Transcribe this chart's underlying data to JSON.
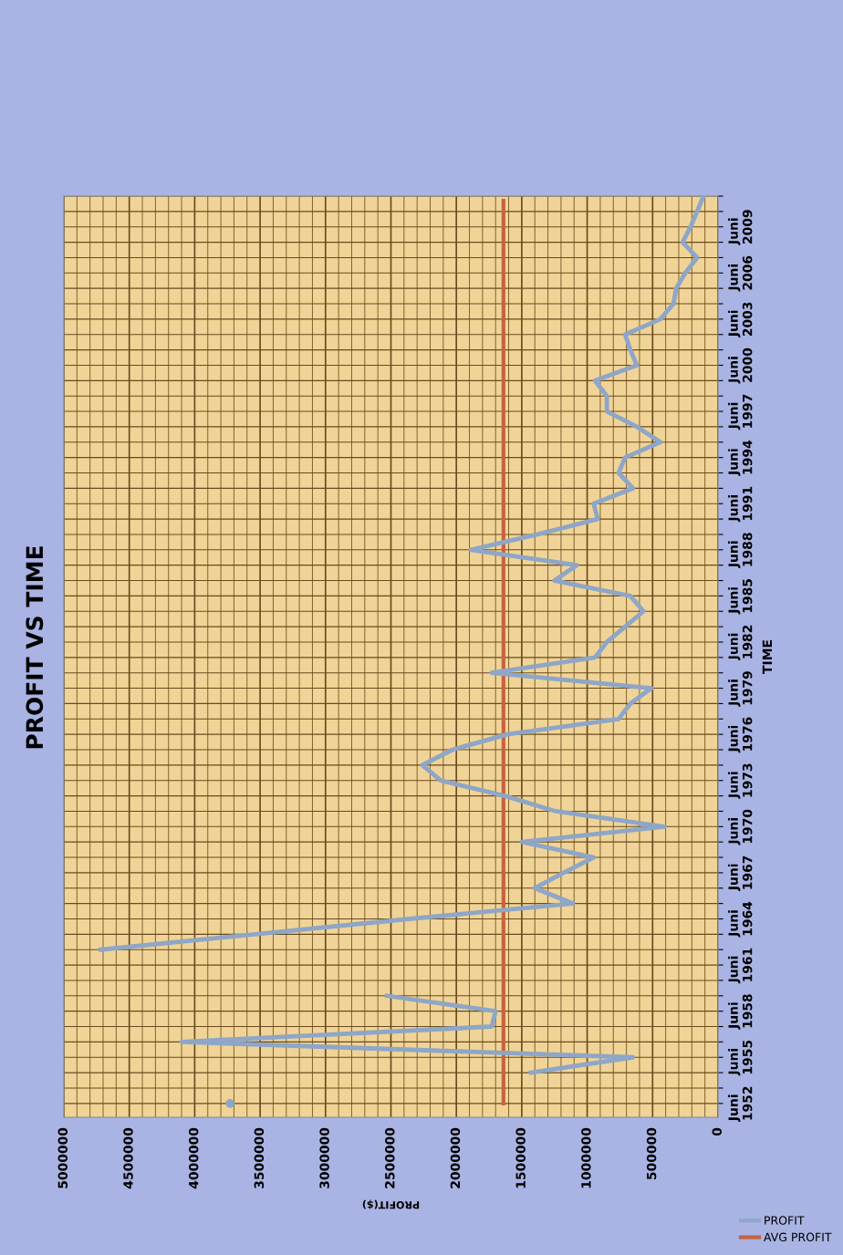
{
  "chart_data": {
    "type": "line",
    "orientation": "horizontal",
    "title": "PROFIT VS TIME",
    "ylabel": "TIME",
    "xlabel": "PROFIT($)",
    "categories": [
      null,
      null,
      "Juni 2009",
      null,
      null,
      "Juni 2006",
      null,
      null,
      "Juni 2003",
      null,
      null,
      "Juni 2000",
      null,
      null,
      "Juni 1997",
      null,
      null,
      "Juni 1994",
      null,
      null,
      "Juni 1991",
      null,
      null,
      "Juni 1988",
      null,
      null,
      "Juni 1985",
      null,
      null,
      "Juni 1982",
      null,
      null,
      "Juni 1979",
      null,
      null,
      "Juni 1976",
      null,
      null,
      "Juni 1973",
      null,
      null,
      "Juni 1970",
      null,
      null,
      "Juni 1967",
      null,
      null,
      "Juni 1964",
      null,
      null,
      "Juni 1961",
      null,
      null,
      "Juni 1958",
      null,
      null,
      "Juni 1955",
      null,
      null,
      "Juni 1952"
    ],
    "series": [
      {
        "name": "PROFIT",
        "color": "#8ea6c8",
        "values": [
          110000,
          160000,
          210000,
          270000,
          160000,
          250000,
          320000,
          340000,
          440000,
          710000,
          670000,
          620000,
          940000,
          850000,
          850000,
          620000,
          440000,
          710000,
          760000,
          650000,
          950000,
          920000,
          1380000,
          1890000,
          1080000,
          1250000,
          670000,
          570000,
          710000,
          850000,
          940000,
          1730000,
          510000,
          670000,
          760000,
          1610000,
          2030000,
          2260000,
          2120000,
          1630000,
          1240000,
          410000,
          1500000,
          950000,
          1180000,
          1400000,
          1110000,
          2360000,
          3540000,
          4720000,
          null,
          null,
          2530000,
          1700000,
          1730000,
          4100000,
          650000,
          1430000,
          null,
          3730000
        ]
      }
    ],
    "ref_lines": [
      {
        "axis": "x",
        "value": 1640000,
        "label": "AVG PROFIT",
        "color": "#c8623f"
      }
    ],
    "xlim": [
      5000000,
      0
    ],
    "xticks": [
      0,
      {
        "value": 100000,
        "label": null
      },
      {
        "value": 200000,
        "label": null
      },
      {
        "value": 300000,
        "label": null
      },
      {
        "value": 400000,
        "label": null
      },
      500000,
      {
        "value": 600000,
        "label": null
      },
      {
        "value": 700000,
        "label": null
      },
      {
        "value": 800000,
        "label": null
      },
      {
        "value": 900000,
        "label": null
      },
      1000000,
      {
        "value": 1100000,
        "label": null
      },
      {
        "value": 1200000,
        "label": null
      },
      {
        "value": 1300000,
        "label": null
      },
      {
        "value": 1400000,
        "label": null
      },
      1500000,
      {
        "value": 1600000,
        "label": null
      },
      {
        "value": 1700000,
        "label": null
      },
      {
        "value": 1800000,
        "label": null
      },
      {
        "value": 1900000,
        "label": null
      },
      2000000,
      {
        "value": 2100000,
        "label": null
      },
      {
        "value": 2200000,
        "label": null
      },
      {
        "value": 2300000,
        "label": null
      },
      {
        "value": 2400000,
        "label": null
      },
      2500000,
      {
        "value": 2600000,
        "label": null
      },
      {
        "value": 2700000,
        "label": null
      },
      {
        "value": 2800000,
        "label": null
      },
      {
        "value": 2900000,
        "label": null
      },
      3000000,
      {
        "value": 3100000,
        "label": null
      },
      {
        "value": 3200000,
        "label": null
      },
      {
        "value": 3300000,
        "label": null
      },
      {
        "value": 3400000,
        "label": null
      },
      3500000,
      {
        "value": 3600000,
        "label": null
      },
      {
        "value": 3700000,
        "label": null
      },
      {
        "value": 3800000,
        "label": null
      },
      {
        "value": 3900000,
        "label": null
      },
      4000000,
      {
        "value": 4100000,
        "label": null
      },
      {
        "value": 4200000,
        "label": null
      },
      {
        "value": 4300000,
        "label": null
      },
      {
        "value": 4400000,
        "label": null
      },
      4500000,
      {
        "value": 4600000,
        "label": null
      },
      {
        "value": 4700000,
        "label": null
      },
      {
        "value": 4800000,
        "label": null
      },
      {
        "value": 4900000,
        "label": null
      },
      5000000
    ],
    "grid": true,
    "legend": "bottom right"
  }
}
